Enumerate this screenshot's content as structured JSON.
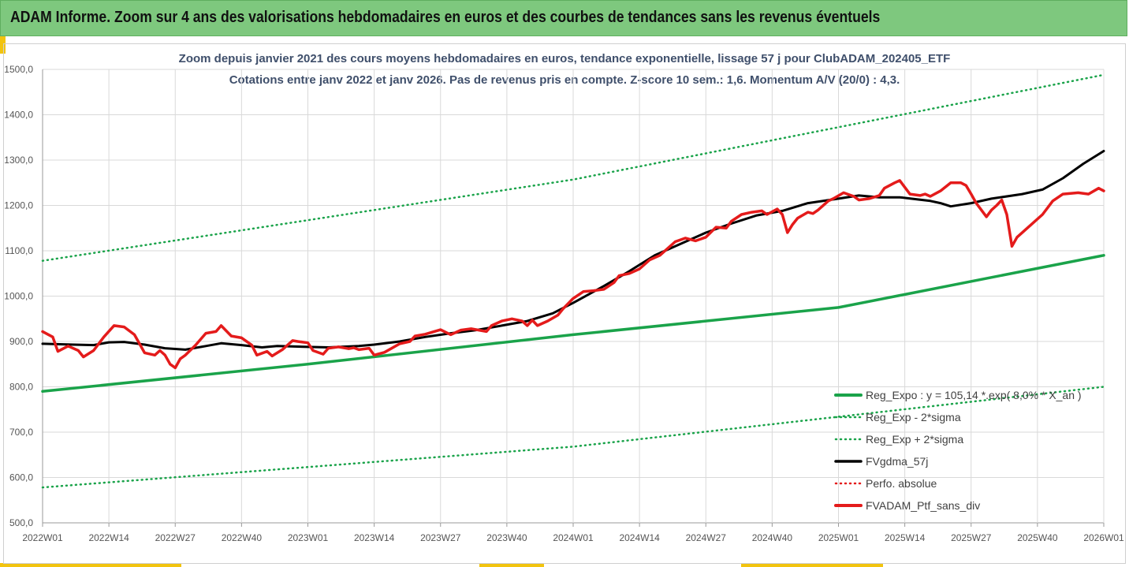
{
  "header": {
    "title": "ADAM Informe. Zoom sur 4 ans des valorisations hebdomadaires en euros et des courbes de tendances sans les revenus éventuels"
  },
  "chart_data": {
    "type": "line",
    "title_line1": "Zoom depuis janvier 2021 des cours moyens hebdomadaires  en euros, tendance exponentielle, lissage 57 j pour ClubADAM_202405_ETF",
    "title_line2": "Cotations entre janv 2022 et janv 2026. Pas de revenus pris en compte. Z-score 10 sem.: 1,6. Momentum  A/V (20/0) : 4,3.",
    "x_tick_labels": [
      "2022W01",
      "2022W14",
      "2022W27",
      "2022W40",
      "2023W01",
      "2023W14",
      "2023W27",
      "2023W40",
      "2024W01",
      "2024W14",
      "2024W27",
      "2024W40",
      "2025W01",
      "2025W14",
      "2025W27",
      "2025W40",
      "2026W01"
    ],
    "y_tick_labels": [
      "500,0",
      "600,0",
      "700,0",
      "800,0",
      "900,0",
      "1000,0",
      "1100,0",
      "1200,0",
      "1300,0",
      "1400,0",
      "1500,0"
    ],
    "ylim": [
      500,
      1500
    ],
    "x_range_weeks": [
      0,
      208
    ],
    "grid": true,
    "legend_position": "bottom-right",
    "legend": [
      "Reg_Expo : y = 105,14 *.exp( 8,0% * X_an )",
      "Reg_Exp - 2*sigma",
      "Reg_Exp + 2*sigma",
      "FVgdma_57j",
      "Perfo. absolue",
      "FVADAM_Ptf_sans_div"
    ],
    "series": [
      {
        "name": "Reg_Expo : y = 105,14 *.exp( 8,0% * X_an )",
        "color": "#1aa34a",
        "style": "solid",
        "width": 3.5,
        "points": [
          [
            0,
            790
          ],
          [
            52,
            850
          ],
          [
            104,
            915
          ],
          [
            156,
            975
          ],
          [
            208,
            1090
          ]
        ]
      },
      {
        "name": "Reg_Exp - 2*sigma",
        "color": "#1aa34a",
        "style": "dotted",
        "width": 2.5,
        "points": [
          [
            0,
            578
          ],
          [
            104,
            668
          ],
          [
            208,
            800
          ]
        ]
      },
      {
        "name": "Reg_Exp + 2*sigma",
        "color": "#1aa34a",
        "style": "dotted",
        "width": 2.5,
        "points": [
          [
            0,
            1078
          ],
          [
            104,
            1257
          ],
          [
            208,
            1488
          ]
        ]
      },
      {
        "name": "FVgdma_57j",
        "color": "#000000",
        "style": "solid",
        "width": 3,
        "points": [
          [
            0,
            895
          ],
          [
            6,
            893
          ],
          [
            10,
            892
          ],
          [
            13,
            898
          ],
          [
            16,
            899
          ],
          [
            20,
            893
          ],
          [
            24,
            885
          ],
          [
            28,
            882
          ],
          [
            32,
            890
          ],
          [
            35,
            896
          ],
          [
            39,
            892
          ],
          [
            43,
            887
          ],
          [
            46,
            890
          ],
          [
            52,
            888
          ],
          [
            56,
            887
          ],
          [
            62,
            890
          ],
          [
            65,
            893
          ],
          [
            70,
            900
          ],
          [
            75,
            910
          ],
          [
            80,
            918
          ],
          [
            85,
            925
          ],
          [
            90,
            935
          ],
          [
            95,
            945
          ],
          [
            100,
            962
          ],
          [
            104,
            985
          ],
          [
            110,
            1022
          ],
          [
            115,
            1055
          ],
          [
            120,
            1090
          ],
          [
            126,
            1120
          ],
          [
            130,
            1140
          ],
          [
            135,
            1160
          ],
          [
            140,
            1178
          ],
          [
            145,
            1188
          ],
          [
            150,
            1205
          ],
          [
            156,
            1215
          ],
          [
            160,
            1222
          ],
          [
            164,
            1218
          ],
          [
            168,
            1218
          ],
          [
            174,
            1210
          ],
          [
            176,
            1205
          ],
          [
            178,
            1198
          ],
          [
            182,
            1205
          ],
          [
            186,
            1215
          ],
          [
            192,
            1225
          ],
          [
            196,
            1235
          ],
          [
            200,
            1260
          ],
          [
            204,
            1292
          ],
          [
            208,
            1320
          ]
        ]
      },
      {
        "name": "FVADAM_Ptf_sans_div",
        "color": "#e41b1b",
        "style": "solid",
        "width": 3.5,
        "points": [
          [
            0,
            922
          ],
          [
            2,
            910
          ],
          [
            3,
            878
          ],
          [
            5,
            890
          ],
          [
            7,
            880
          ],
          [
            8,
            866
          ],
          [
            10,
            880
          ],
          [
            12,
            910
          ],
          [
            14,
            935
          ],
          [
            16,
            932
          ],
          [
            18,
            915
          ],
          [
            20,
            875
          ],
          [
            22,
            870
          ],
          [
            23,
            880
          ],
          [
            24,
            870
          ],
          [
            25,
            850
          ],
          [
            26,
            842
          ],
          [
            27,
            862
          ],
          [
            28,
            870
          ],
          [
            30,
            892
          ],
          [
            32,
            918
          ],
          [
            34,
            922
          ],
          [
            35,
            935
          ],
          [
            37,
            912
          ],
          [
            39,
            908
          ],
          [
            41,
            892
          ],
          [
            42,
            870
          ],
          [
            44,
            878
          ],
          [
            45,
            868
          ],
          [
            47,
            882
          ],
          [
            49,
            902
          ],
          [
            50,
            900
          ],
          [
            52,
            897
          ],
          [
            53,
            880
          ],
          [
            55,
            872
          ],
          [
            56,
            885
          ],
          [
            58,
            888
          ],
          [
            60,
            884
          ],
          [
            61,
            886
          ],
          [
            62,
            882
          ],
          [
            64,
            885
          ],
          [
            65,
            870
          ],
          [
            67,
            876
          ],
          [
            70,
            895
          ],
          [
            72,
            900
          ],
          [
            73,
            912
          ],
          [
            75,
            916
          ],
          [
            78,
            926
          ],
          [
            80,
            915
          ],
          [
            82,
            925
          ],
          [
            84,
            928
          ],
          [
            87,
            922
          ],
          [
            88,
            935
          ],
          [
            90,
            945
          ],
          [
            92,
            950
          ],
          [
            94,
            945
          ],
          [
            95,
            935
          ],
          [
            96,
            947
          ],
          [
            97,
            935
          ],
          [
            99,
            945
          ],
          [
            101,
            958
          ],
          [
            102,
            972
          ],
          [
            104,
            995
          ],
          [
            106,
            1010
          ],
          [
            108,
            1012
          ],
          [
            110,
            1015
          ],
          [
            112,
            1030
          ],
          [
            113,
            1045
          ],
          [
            115,
            1050
          ],
          [
            117,
            1060
          ],
          [
            119,
            1080
          ],
          [
            121,
            1090
          ],
          [
            124,
            1120
          ],
          [
            126,
            1128
          ],
          [
            128,
            1122
          ],
          [
            130,
            1130
          ],
          [
            132,
            1152
          ],
          [
            134,
            1150
          ],
          [
            135,
            1165
          ],
          [
            137,
            1180
          ],
          [
            139,
            1185
          ],
          [
            141,
            1188
          ],
          [
            142,
            1180
          ],
          [
            144,
            1192
          ],
          [
            145,
            1180
          ],
          [
            146,
            1140
          ],
          [
            147,
            1158
          ],
          [
            148,
            1172
          ],
          [
            150,
            1185
          ],
          [
            151,
            1182
          ],
          [
            152,
            1190
          ],
          [
            154,
            1210
          ],
          [
            155,
            1215
          ],
          [
            157,
            1228
          ],
          [
            159,
            1220
          ],
          [
            160,
            1212
          ],
          [
            162,
            1215
          ],
          [
            164,
            1222
          ],
          [
            165,
            1238
          ],
          [
            167,
            1250
          ],
          [
            168,
            1255
          ],
          [
            170,
            1225
          ],
          [
            172,
            1222
          ],
          [
            173,
            1225
          ],
          [
            174,
            1220
          ],
          [
            176,
            1232
          ],
          [
            178,
            1250
          ],
          [
            180,
            1250
          ],
          [
            181,
            1244
          ],
          [
            182,
            1225
          ],
          [
            183,
            1205
          ],
          [
            185,
            1175
          ],
          [
            186,
            1190
          ],
          [
            187,
            1200
          ],
          [
            188,
            1212
          ],
          [
            189,
            1180
          ],
          [
            190,
            1110
          ],
          [
            191,
            1130
          ],
          [
            193,
            1150
          ],
          [
            196,
            1180
          ],
          [
            198,
            1210
          ],
          [
            200,
            1225
          ],
          [
            203,
            1228
          ],
          [
            205,
            1225
          ],
          [
            207,
            1238
          ],
          [
            208,
            1232
          ]
        ]
      }
    ]
  },
  "colors": {
    "title_bar": "#7ec87e",
    "accent_yellow": "#f2c40f",
    "subtitle": "#3f4f6b"
  }
}
